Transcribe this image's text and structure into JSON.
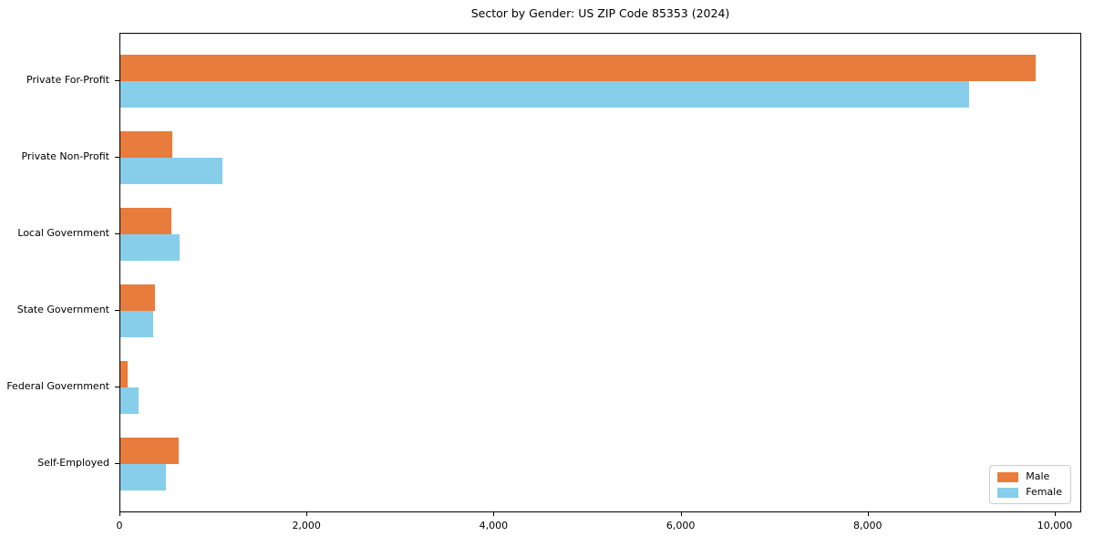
{
  "title": "Sector by Gender: US ZIP Code 85353 (2024)",
  "chart_data": {
    "type": "bar",
    "orientation": "horizontal",
    "title": "Sector by Gender: US ZIP Code 85353 (2024)",
    "categories": [
      "Private For-Profit",
      "Private Non-Profit",
      "Local Government",
      "State Government",
      "Federal Government",
      "Self-Employed"
    ],
    "series": [
      {
        "name": "Male",
        "color": "#E87C3C",
        "values": [
          9785,
          555,
          545,
          375,
          80,
          625
        ]
      },
      {
        "name": "Female",
        "color": "#87CEEB",
        "values": [
          9075,
          1090,
          630,
          350,
          195,
          490
        ]
      }
    ],
    "xlabel": "",
    "ylabel": "",
    "xlim": [
      0,
      10283
    ],
    "x_ticks": [
      0,
      2000,
      4000,
      6000,
      8000,
      10000
    ],
    "x_tick_labels": [
      "0",
      "2,000",
      "4,000",
      "6,000",
      "8,000",
      "10,000"
    ],
    "grid": false,
    "legend": {
      "position": "lower right",
      "items": [
        "Male",
        "Female"
      ]
    }
  }
}
